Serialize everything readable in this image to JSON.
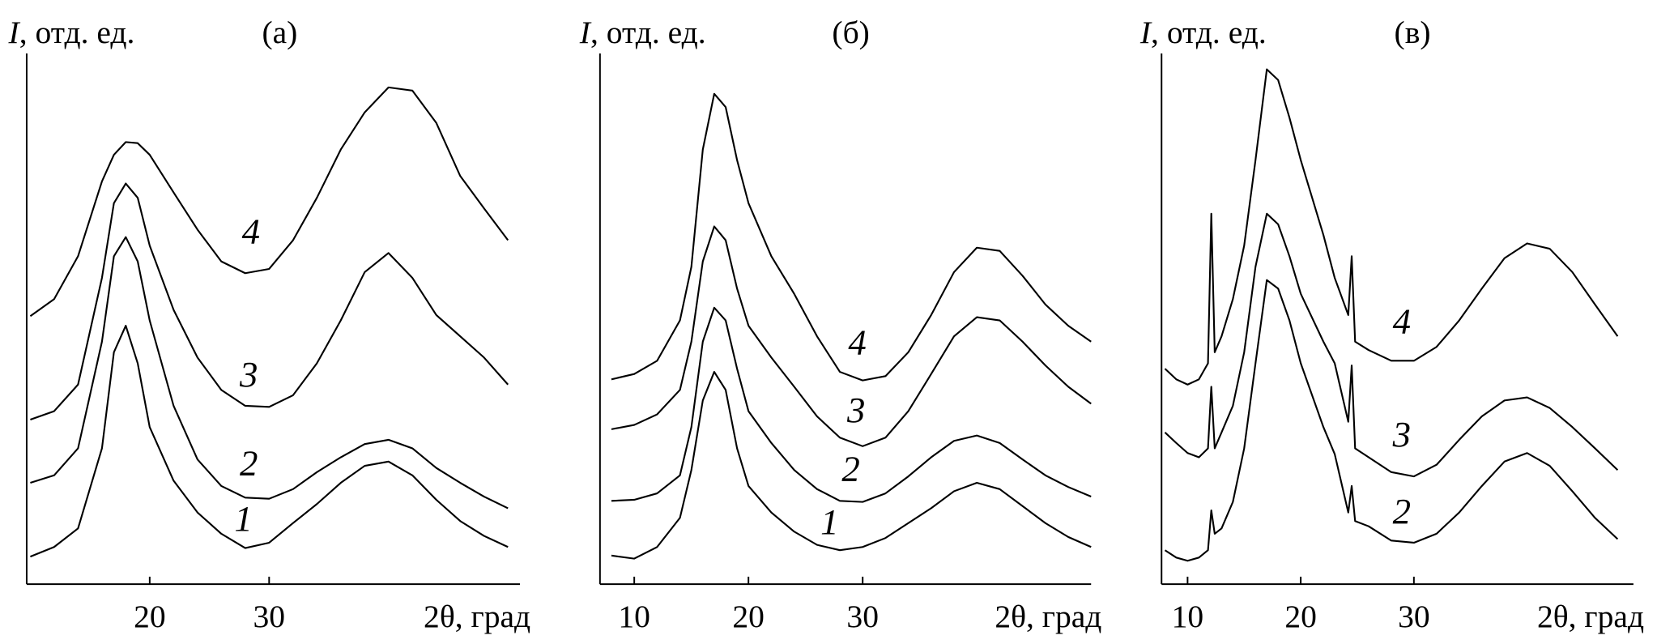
{
  "chart_data": [
    {
      "type": "line",
      "title": "(а)",
      "y_label_symbol": "I",
      "y_label": ", отд. ед.",
      "x_label": "2θ, град",
      "xlim": [
        9.7,
        51
      ],
      "ylim": [
        0,
        100
      ],
      "xticks": [
        20,
        30
      ],
      "x": [
        10,
        12,
        14,
        16,
        17,
        18,
        19,
        20,
        22,
        24,
        26,
        28,
        30,
        32,
        34,
        36,
        38,
        40,
        42,
        44,
        46,
        48,
        50
      ],
      "series": [
        {
          "name": "1",
          "color": "#000000",
          "values": [
            5.2,
            7.0,
            10.5,
            25.6,
            43.7,
            48.7,
            41.6,
            29.6,
            19.5,
            13.5,
            9.5,
            6.8,
            7.8,
            11.5,
            15.1,
            19.1,
            22.3,
            23.1,
            20.5,
            15.9,
            11.9,
            9.1,
            7.0
          ]
        },
        {
          "name": "2",
          "color": "#000000",
          "values": [
            19.1,
            20.5,
            25.6,
            45.7,
            61.8,
            65.4,
            60.8,
            49.7,
            33.6,
            23.5,
            18.5,
            16.3,
            16.1,
            17.9,
            21.1,
            23.9,
            26.4,
            27.2,
            25.6,
            21.9,
            19.1,
            16.5,
            14.3
          ]
        },
        {
          "name": "3",
          "color": "#000000",
          "values": [
            31.0,
            32.6,
            37.6,
            57.7,
            71.8,
            75.5,
            72.8,
            63.8,
            51.7,
            42.7,
            36.6,
            33.6,
            33.4,
            35.6,
            41.6,
            49.7,
            58.8,
            62.4,
            57.7,
            50.7,
            46.7,
            42.7,
            37.6
          ]
        },
        {
          "name": "4",
          "color": "#000000",
          "values": [
            50.5,
            53.7,
            61.8,
            75.9,
            80.9,
            83.3,
            83.1,
            80.9,
            73.8,
            66.8,
            60.8,
            58.6,
            59.4,
            64.8,
            72.8,
            81.9,
            88.9,
            93.6,
            93.0,
            86.9,
            76.9,
            70.8,
            64.8
          ]
        }
      ]
    },
    {
      "type": "line",
      "title": "(б)",
      "y_label_symbol": "I",
      "y_label": ", отд. ед.",
      "x_label": "2θ, град",
      "xlim": [
        7.0,
        50.0
      ],
      "ylim": [
        0,
        100
      ],
      "xticks": [
        10,
        20,
        30
      ],
      "x": [
        8,
        10,
        12,
        14,
        15,
        16,
        17,
        18,
        19,
        20,
        22,
        24,
        26,
        28,
        30,
        32,
        34,
        36,
        38,
        40,
        42,
        44,
        46,
        48,
        50
      ],
      "series": [
        {
          "name": "1",
          "color": "#000000",
          "values": [
            5.4,
            4.8,
            7.0,
            12.5,
            21.5,
            34.6,
            40.0,
            36.6,
            25.6,
            18.5,
            13.5,
            9.9,
            7.4,
            6.4,
            7.0,
            8.7,
            11.5,
            14.3,
            17.5,
            19.1,
            17.9,
            14.7,
            11.5,
            8.9,
            7.0
          ]
        },
        {
          "name": "2",
          "color": "#000000",
          "values": [
            15.7,
            15.9,
            17.1,
            20.5,
            29.6,
            45.7,
            52.1,
            49.7,
            40.6,
            32.6,
            26.6,
            21.5,
            17.9,
            15.7,
            15.5,
            17.1,
            20.3,
            23.9,
            27.0,
            28.0,
            26.6,
            23.5,
            20.5,
            18.3,
            16.5
          ]
        },
        {
          "name": "3",
          "color": "#000000",
          "values": [
            29.2,
            30.0,
            32.0,
            36.6,
            45.7,
            60.8,
            67.4,
            64.8,
            55.7,
            48.7,
            42.7,
            37.2,
            31.6,
            27.6,
            26.0,
            27.6,
            32.6,
            39.6,
            46.7,
            50.3,
            49.7,
            45.7,
            41.2,
            37.2,
            34.0
          ]
        },
        {
          "name": "4",
          "color": "#000000",
          "values": [
            38.6,
            39.6,
            42.1,
            49.7,
            59.8,
            81.9,
            92.4,
            89.9,
            79.9,
            71.8,
            61.8,
            54.7,
            46.7,
            40.0,
            38.4,
            39.2,
            43.7,
            50.7,
            58.8,
            63.4,
            62.8,
            58.1,
            52.7,
            48.7,
            45.7
          ]
        }
      ]
    },
    {
      "type": "line",
      "title": "(в)",
      "y_label_symbol": "I",
      "y_label": ", отд. ед.",
      "x_label": "2θ, град",
      "xlim": [
        7.7,
        49.4
      ],
      "ylim": [
        0,
        100
      ],
      "xticks": [
        10,
        20,
        30
      ],
      "x": [
        8,
        9,
        10,
        11,
        11.8,
        12.1,
        12.4,
        13,
        14,
        15,
        16,
        17,
        18,
        19,
        20,
        22,
        23,
        24.2,
        24.5,
        24.8,
        26,
        28,
        30,
        32,
        34,
        36,
        38,
        40,
        42,
        44,
        46,
        48
      ],
      "series": [
        {
          "name": "2",
          "color": "#000000",
          "values": [
            6.4,
            5.0,
            4.4,
            5.0,
            6.4,
            13.9,
            9.5,
            10.5,
            15.5,
            25.6,
            41.6,
            57.3,
            55.7,
            49.7,
            41.6,
            29.6,
            24.5,
            13.5,
            18.5,
            11.9,
            10.9,
            8.2,
            7.8,
            9.5,
            13.5,
            18.5,
            23.1,
            24.7,
            22.3,
            17.5,
            12.5,
            8.5
          ]
        },
        {
          "name": "3",
          "color": "#000000",
          "values": [
            28.6,
            26.6,
            24.7,
            23.9,
            25.6,
            37.2,
            25.6,
            28.6,
            33.6,
            43.7,
            59.8,
            69.8,
            67.8,
            61.8,
            54.7,
            45.7,
            41.6,
            30.6,
            41.2,
            25.6,
            23.9,
            21.1,
            20.3,
            22.5,
            27.2,
            31.6,
            34.6,
            35.2,
            33.2,
            29.6,
            25.6,
            21.5
          ]
        },
        {
          "name": "4",
          "color": "#000000",
          "values": [
            40.6,
            38.6,
            37.6,
            38.6,
            41.6,
            69.8,
            43.7,
            46.7,
            53.7,
            63.8,
            79.9,
            97.0,
            95.0,
            87.9,
            79.9,
            65.8,
            57.7,
            50.7,
            61.8,
            45.7,
            44.1,
            42.1,
            42.1,
            44.7,
            49.7,
            55.7,
            61.4,
            64.2,
            63.2,
            58.8,
            52.7,
            46.7
          ]
        }
      ]
    }
  ]
}
